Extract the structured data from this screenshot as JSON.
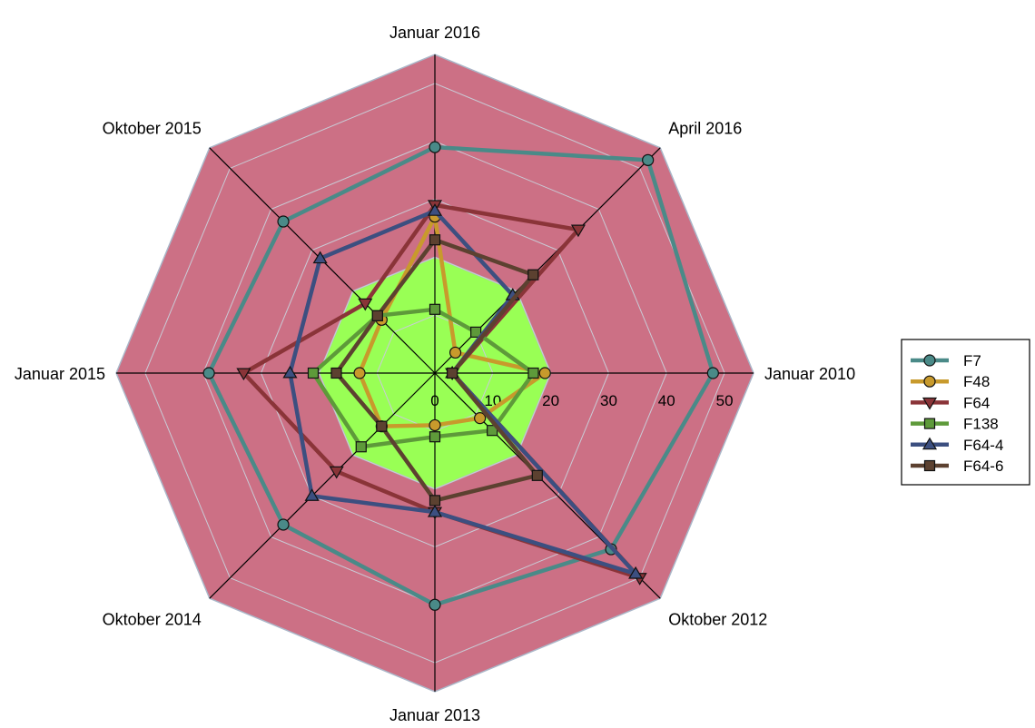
{
  "chart_data": {
    "type": "radar",
    "title": "",
    "categories": [
      "Januar 2010",
      "April 2016",
      "Januar 2016",
      "Oktober 2015",
      "Januar 2015",
      "Oktober 2014",
      "Januar 2013",
      "Oktober 2012"
    ],
    "rlim": [
      0,
      55
    ],
    "ticks": [
      0,
      10,
      20,
      30,
      40,
      50
    ],
    "grid": true,
    "legend_position": "right",
    "background_bands": [
      {
        "from": 0,
        "to": 20,
        "color": "#99ff55"
      },
      {
        "from": 20,
        "to": 55,
        "color": "#cc7085"
      }
    ],
    "series": [
      {
        "name": "F7",
        "color": "#4a8a88",
        "marker": "circle",
        "values": [
          48,
          52,
          39,
          37,
          39,
          37,
          40,
          43
        ]
      },
      {
        "name": "F48",
        "color": "#c89a2c",
        "marker": "circle",
        "values": [
          19,
          5,
          27,
          13,
          13,
          13,
          9,
          11
        ]
      },
      {
        "name": "F64",
        "color": "#8a3438",
        "marker": "triangle-down",
        "values": [
          3,
          35,
          29,
          17,
          33,
          24,
          24,
          50
        ]
      },
      {
        "name": "F138",
        "color": "#5e9a3a",
        "marker": "square",
        "values": [
          17,
          10,
          11,
          14,
          21,
          18,
          11,
          14
        ]
      },
      {
        "name": "F64-4",
        "color": "#3c4f80",
        "marker": "triangle-up",
        "values": [
          3,
          19,
          28,
          28,
          25,
          30,
          24,
          49
        ]
      },
      {
        "name": "F64-6",
        "color": "#5c4130",
        "marker": "square",
        "values": [
          3,
          24,
          23,
          14,
          17,
          13,
          22,
          25
        ]
      }
    ]
  }
}
